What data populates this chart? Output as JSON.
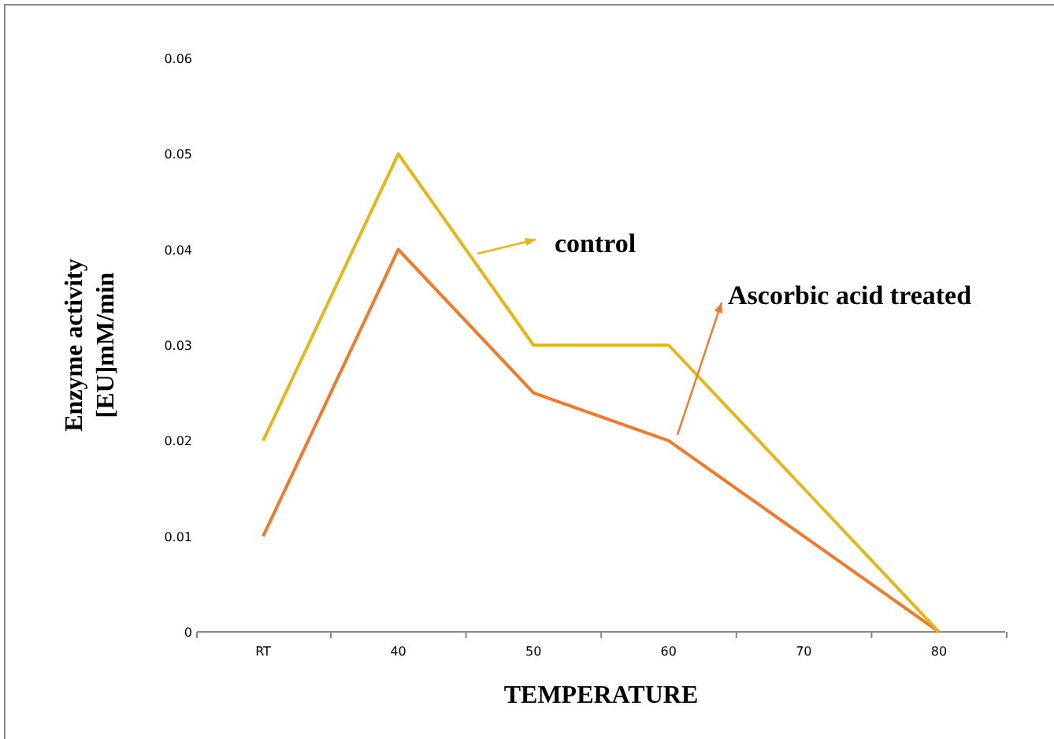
{
  "chart_data": {
    "type": "line",
    "xlabel": "TEMPERATURE",
    "ylabel": "Enzyme activity\n[EU]mM/min",
    "categories": [
      "RT",
      "40",
      "50",
      "60",
      "70",
      "80"
    ],
    "ylim": [
      0,
      0.06
    ],
    "yticks": [
      0,
      0.01,
      0.02,
      0.03,
      0.04,
      0.05,
      0.06
    ],
    "grid": false,
    "legend": "top right",
    "marker": "none",
    "line_style": "solid",
    "series": [
      {
        "name": "control",
        "color": "#e8b517",
        "values": [
          0.02,
          0.05,
          0.03,
          0.03,
          0.015,
          0
        ]
      },
      {
        "name": "Ascorbic acid treated",
        "color": "#f07a2a",
        "values": [
          0.01,
          0.04,
          0.025,
          0.02,
          0.01,
          0
        ]
      }
    ]
  }
}
